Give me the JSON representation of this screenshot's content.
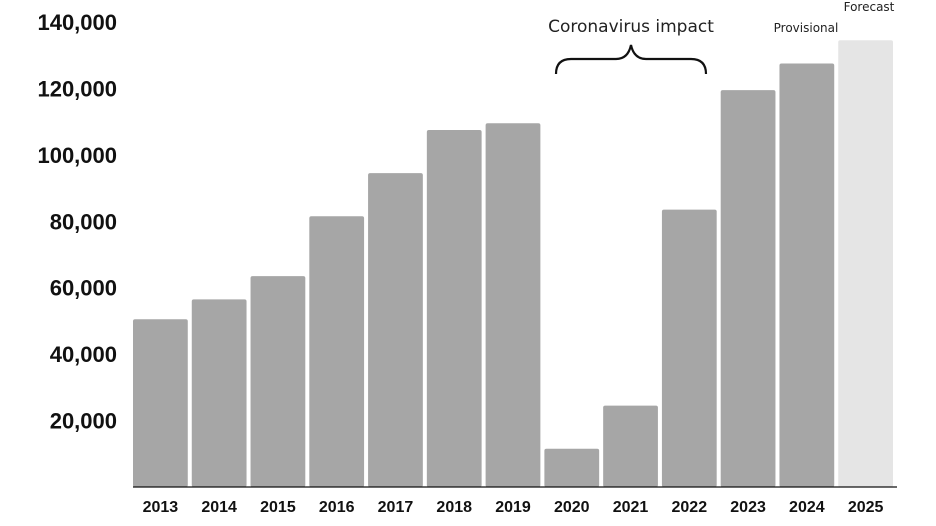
{
  "chart_data": {
    "type": "bar",
    "title": "",
    "xlabel": "",
    "ylabel": "",
    "ylim": [
      0,
      140000
    ],
    "yticks": [
      20000,
      40000,
      60000,
      80000,
      100000,
      120000,
      140000
    ],
    "ytick_labels": [
      "20,000",
      "40,000",
      "60,000",
      "80,000",
      "100,000",
      "120,000",
      "140,000"
    ],
    "grid": false,
    "legend": "none",
    "categories": [
      "2013",
      "2014",
      "2015",
      "2016",
      "2017",
      "2018",
      "2019",
      "2020",
      "2021",
      "2022",
      "2023",
      "2024",
      "2025"
    ],
    "values": [
      50500,
      56500,
      63500,
      81500,
      94500,
      107500,
      109500,
      11500,
      24500,
      83500,
      119500,
      127500,
      134500
    ],
    "bar_colors": {
      "actual": "#a6a6a6",
      "forecast": "#e5e5e5"
    },
    "annotations": {
      "coronavirus": "Coronavirus impact",
      "provisional": "Provisional",
      "forecast": "Forecast"
    }
  }
}
